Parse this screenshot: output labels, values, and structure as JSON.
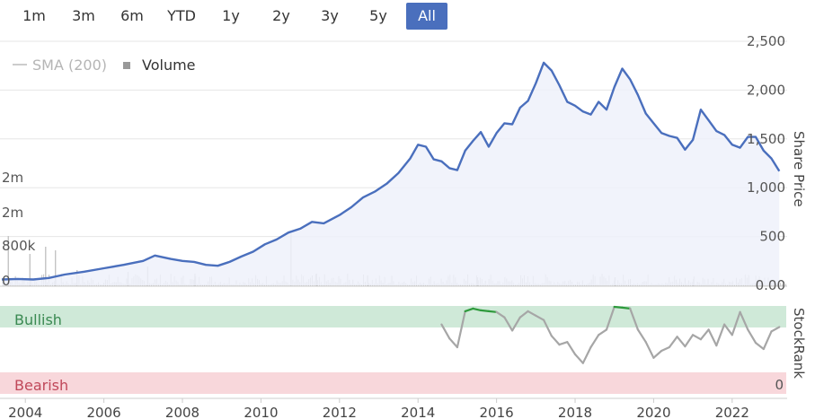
{
  "range_selector": {
    "buttons": [
      {
        "label": "1m",
        "active": false
      },
      {
        "label": "3m",
        "active": false
      },
      {
        "label": "6m",
        "active": false
      },
      {
        "label": "YTD",
        "active": false
      },
      {
        "label": "1y",
        "active": false
      },
      {
        "label": "2y",
        "active": false
      },
      {
        "label": "3y",
        "active": false
      },
      {
        "label": "5y",
        "active": false
      },
      {
        "label": "All",
        "active": true
      }
    ]
  },
  "legend": {
    "sma_label": "SMA (200)",
    "volume_label": "Volume"
  },
  "colors": {
    "price": "#4a6fbd",
    "price_fill": "#eef1fa",
    "volume": "#c4c4c4",
    "bullish_band": "#cfe9d8",
    "bearish_band": "#f8d7db",
    "stockrank_gray": "#a6a6a6",
    "stockrank_green": "#2e9a3c",
    "active_button": "#4a6fbd",
    "bullish_text": "#3a8a52",
    "bearish_text": "#c0485a"
  },
  "chart_data": [
    {
      "type": "line",
      "series": [
        {
          "name": "",
          "x": [
            2003.4,
            2003.8,
            2004.2,
            2004.6,
            2005.0,
            2005.5,
            2006.0,
            2006.5,
            2007.0,
            2007.3,
            2007.7,
            2008.0,
            2008.3,
            2008.6,
            2008.9,
            2009.2,
            2009.5,
            2009.8,
            2010.1,
            2010.4,
            2010.7,
            2011.0,
            2011.3,
            2011.6,
            2012.0,
            2012.3,
            2012.6,
            2012.9,
            2013.2,
            2013.5,
            2013.8,
            2014.0,
            2014.2,
            2014.4,
            2014.6,
            2014.8,
            2015.0,
            2015.2,
            2015.4,
            2015.6,
            2015.8,
            2016.0,
            2016.2,
            2016.4,
            2016.6,
            2016.8,
            2017.0,
            2017.2,
            2017.4,
            2017.6,
            2017.8,
            2018.0,
            2018.2,
            2018.4,
            2018.6,
            2018.8,
            2019.0,
            2019.2,
            2019.4,
            2019.6,
            2019.8,
            2020.0,
            2020.2,
            2020.4,
            2020.6,
            2020.8,
            2021.0,
            2021.2,
            2021.4,
            2021.6,
            2021.8,
            2022.0,
            2022.2,
            2022.4,
            2022.6,
            2022.8,
            2023.0,
            2023.2
          ],
          "values": [
            60,
            65,
            60,
            75,
            110,
            140,
            175,
            210,
            250,
            305,
            270,
            250,
            240,
            210,
            200,
            240,
            295,
            345,
            420,
            470,
            540,
            580,
            650,
            635,
            720,
            800,
            900,
            960,
            1040,
            1150,
            1300,
            1440,
            1420,
            1290,
            1270,
            1200,
            1180,
            1380,
            1480,
            1570,
            1420,
            1560,
            1660,
            1650,
            1820,
            1890,
            2070,
            2280,
            2200,
            2050,
            1880,
            1840,
            1780,
            1750,
            1880,
            1800,
            2030,
            2220,
            2110,
            1950,
            1760,
            1660,
            1560,
            1530,
            1510,
            1390,
            1490,
            1800,
            1690,
            1580,
            1540,
            1440,
            1410,
            1520,
            1520,
            1380,
            1300,
            1170
          ]
        }
      ],
      "ylim": [
        0,
        2500
      ],
      "yticks": [
        "0.00",
        "500",
        "1,000",
        "1,500",
        "2,000",
        "2,500"
      ],
      "ylabel": "Share Price",
      "xlim": [
        2003.4,
        2023.4
      ],
      "xticks": [
        "2004",
        "2006",
        "2008",
        "2010",
        "2012",
        "2014",
        "2016",
        "2018",
        "2020",
        "2022"
      ]
    },
    {
      "type": "bar",
      "series": [
        {
          "name": "Volume"
        }
      ],
      "yticks": [
        "0",
        "800k",
        "2m",
        "2m"
      ],
      "note_values": [
        {
          "x": 2003.55,
          "value": 1.4
        },
        {
          "x": 2004.1,
          "value": 0.9
        },
        {
          "x": 2004.5,
          "value": 1.1
        },
        {
          "x": 2004.75,
          "value": 1.0
        },
        {
          "x": 2005.3,
          "value": 0.45
        },
        {
          "x": 2006.6,
          "value": 0.4
        },
        {
          "x": 2007.1,
          "value": 0.55
        },
        {
          "x": 2008.3,
          "value": 0.35
        },
        {
          "x": 2010.75,
          "value": 1.45
        },
        {
          "x": 2011.4,
          "value": 0.35
        },
        {
          "x": 2012.7,
          "value": 0.3
        },
        {
          "x": 2015.5,
          "value": 0.25
        },
        {
          "x": 2019.0,
          "value": 0.25
        },
        {
          "x": 2021.0,
          "value": 0.2
        }
      ]
    },
    {
      "type": "line",
      "series": [
        {
          "name": "",
          "x": [
            2014.6,
            2014.8,
            2015.0,
            2015.2,
            2015.4,
            2015.6,
            2015.8,
            2016.0,
            2016.2,
            2016.4,
            2016.6,
            2016.8,
            2017.0,
            2017.2,
            2017.4,
            2017.6,
            2017.8,
            2018.0,
            2018.2,
            2018.4,
            2018.6,
            2018.8,
            2019.0,
            2019.2,
            2019.4,
            2019.6,
            2019.8,
            2020.0,
            2020.2,
            2020.4,
            2020.6,
            2020.8,
            2021.0,
            2021.2,
            2021.4,
            2021.6,
            2021.8,
            2022.0,
            2022.2,
            2022.4,
            2022.6,
            2022.8,
            2023.0,
            2023.2
          ],
          "values": [
            0.78,
            0.62,
            0.52,
            0.93,
            0.96,
            0.94,
            0.93,
            0.92,
            0.86,
            0.71,
            0.86,
            0.93,
            0.88,
            0.83,
            0.65,
            0.55,
            0.58,
            0.44,
            0.34,
            0.52,
            0.66,
            0.72,
            0.98,
            0.97,
            0.96,
            0.72,
            0.58,
            0.4,
            0.48,
            0.52,
            0.64,
            0.53,
            0.66,
            0.61,
            0.72,
            0.54,
            0.78,
            0.66,
            0.92,
            0.72,
            0.57,
            0.5,
            0.7,
            0.75
          ],
          "bullish_mask": [
            false,
            false,
            false,
            true,
            true,
            true,
            true,
            true,
            false,
            false,
            false,
            true,
            false,
            false,
            false,
            false,
            false,
            false,
            false,
            false,
            false,
            false,
            true,
            true,
            true,
            false,
            false,
            false,
            false,
            false,
            false,
            false,
            false,
            false,
            false,
            false,
            false,
            false,
            true,
            false,
            false,
            false,
            false,
            false
          ]
        }
      ],
      "bands": [
        "Bullish",
        "Bearish"
      ],
      "yticks": [
        "0"
      ],
      "ylabel": "StockRank"
    }
  ]
}
